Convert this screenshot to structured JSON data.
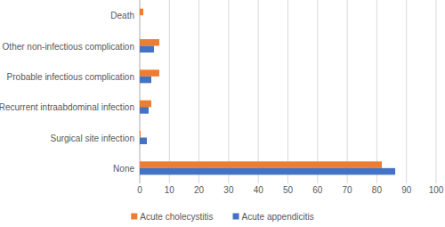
{
  "chart_data": {
    "type": "bar",
    "orientation": "horizontal",
    "categories": [
      "None",
      "Surgical site infection",
      "Recurrent intraabdominal infection",
      "Probable infectious complication",
      "Other non-infectious complication",
      "Death"
    ],
    "series": [
      {
        "name": "Acute cholecystitis",
        "color": "#ed7d31",
        "values": [
          81.7,
          0.3,
          3.9,
          6.6,
          6.6,
          1.2
        ]
      },
      {
        "name": "Acute appendicitis",
        "color": "#4472c4",
        "values": [
          86.2,
          2.4,
          3.0,
          3.9,
          4.8,
          0
        ]
      }
    ],
    "xlim": [
      0,
      100
    ],
    "xticks": [
      0,
      10,
      20,
      30,
      40,
      50,
      60,
      70,
      80,
      90,
      100
    ],
    "grid": true,
    "legend": "bottom"
  }
}
